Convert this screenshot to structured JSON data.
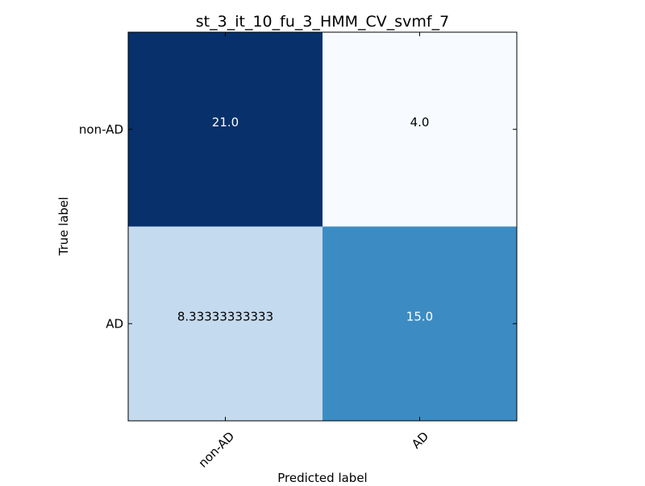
{
  "chart_data": {
    "type": "heatmap",
    "title": "st_3_it_10_fu_3_HMM_CV_svmf_7",
    "xlabel": "Predicted label",
    "ylabel": "True label",
    "x_categories": [
      "non-AD",
      "AD"
    ],
    "y_categories": [
      "non-AD",
      "AD"
    ],
    "values": [
      [
        21.0,
        4.0
      ],
      [
        8.33333333333,
        15.0
      ]
    ],
    "value_labels": [
      [
        "21.0",
        "4.0"
      ],
      [
        "8.33333333333",
        "15.0"
      ]
    ],
    "colormap": "Blues",
    "color_range": [
      4.0,
      21.0
    ],
    "colors": {
      "low": "#f7fbff",
      "high": "#08306b",
      "text_dark": "#000000",
      "text_light": "#ffffff",
      "frame": "#000000"
    },
    "grid": false,
    "legend": "none"
  }
}
